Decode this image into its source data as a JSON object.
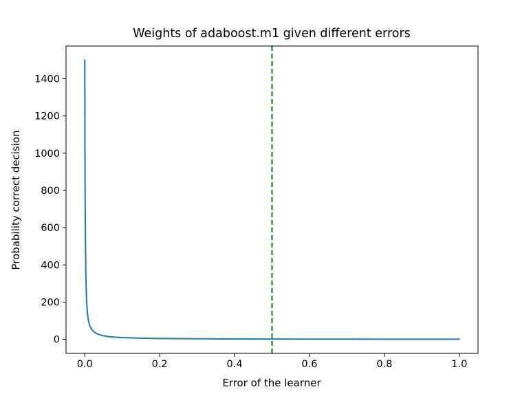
{
  "chart_data": {
    "type": "line",
    "title": "Weights of adaboost.m1 given different errors",
    "xlabel": "Error of the learner",
    "ylabel": "Probability correct decision",
    "xlim": [
      -0.05,
      1.05
    ],
    "ylim": [
      -75,
      1575
    ],
    "xticks": [
      0.0,
      0.2,
      0.4,
      0.6,
      0.8,
      1.0
    ],
    "xtick_labels": [
      "0.0",
      "0.2",
      "0.4",
      "0.6",
      "0.8",
      "1.0"
    ],
    "yticks": [
      0,
      200,
      400,
      600,
      800,
      1000,
      1200,
      1400
    ],
    "ytick_labels": [
      "0",
      "200",
      "400",
      "600",
      "800",
      "1000",
      "1200",
      "1400"
    ],
    "grid": false,
    "series": [
      {
        "color": "#1f77b4",
        "x": [
          0.0,
          0.0005,
          0.001,
          0.002,
          0.003,
          0.005,
          0.0075,
          0.01,
          0.0125,
          0.015,
          0.02,
          0.025,
          0.03,
          0.04,
          0.05,
          0.06,
          0.08,
          0.1,
          0.15,
          0.2,
          0.3,
          0.4,
          0.5,
          0.6,
          0.7,
          0.8,
          0.9,
          1.0
        ],
        "y": [
          1500,
          1000,
          750,
          500,
          330,
          200,
          133,
          100,
          80,
          66,
          50,
          40,
          33,
          25,
          20,
          16,
          12,
          10,
          6.5,
          5,
          3.3,
          2.5,
          2.0,
          1.7,
          1.4,
          1.2,
          1.1,
          1.0
        ]
      }
    ],
    "vlines": [
      {
        "x": 0.5,
        "color": "#008000",
        "style": "dashed"
      }
    ]
  }
}
